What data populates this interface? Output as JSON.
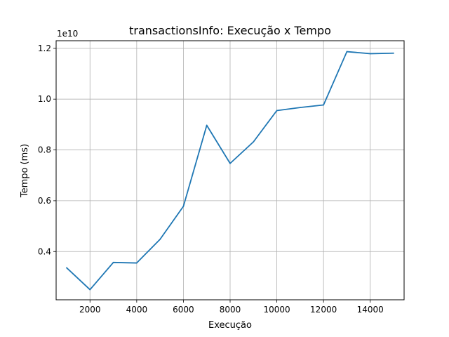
{
  "chart_data": {
    "type": "line",
    "title": "transactionsInfo: Execução x Tempo",
    "xlabel": "Execução",
    "ylabel": "Tempo (ms)",
    "y_offset_label": "1e10",
    "xlim": [
      550,
      15450
    ],
    "ylim": [
      0.21,
      1.23
    ],
    "grid": true,
    "x_ticks": [
      2000,
      4000,
      6000,
      8000,
      10000,
      12000,
      14000
    ],
    "x_tick_labels": [
      "2000",
      "4000",
      "6000",
      "8000",
      "10000",
      "12000",
      "14000"
    ],
    "y_ticks": [
      0.4,
      0.6,
      0.8,
      1.0,
      1.2
    ],
    "y_tick_labels": [
      "0.4",
      "0.6",
      "0.8",
      "1.0",
      "1.2"
    ],
    "series": [
      {
        "name": "Tempo",
        "color": "#1f77b4",
        "x": [
          1000,
          2000,
          3000,
          4000,
          5000,
          6000,
          7000,
          8000,
          9000,
          10000,
          11000,
          12000,
          13000,
          14000,
          15000
        ],
        "values": [
          0.336,
          0.25,
          0.357,
          0.355,
          0.448,
          0.578,
          0.897,
          0.747,
          0.832,
          0.955,
          0.967,
          0.977,
          1.187,
          1.179,
          1.181
        ]
      }
    ]
  }
}
